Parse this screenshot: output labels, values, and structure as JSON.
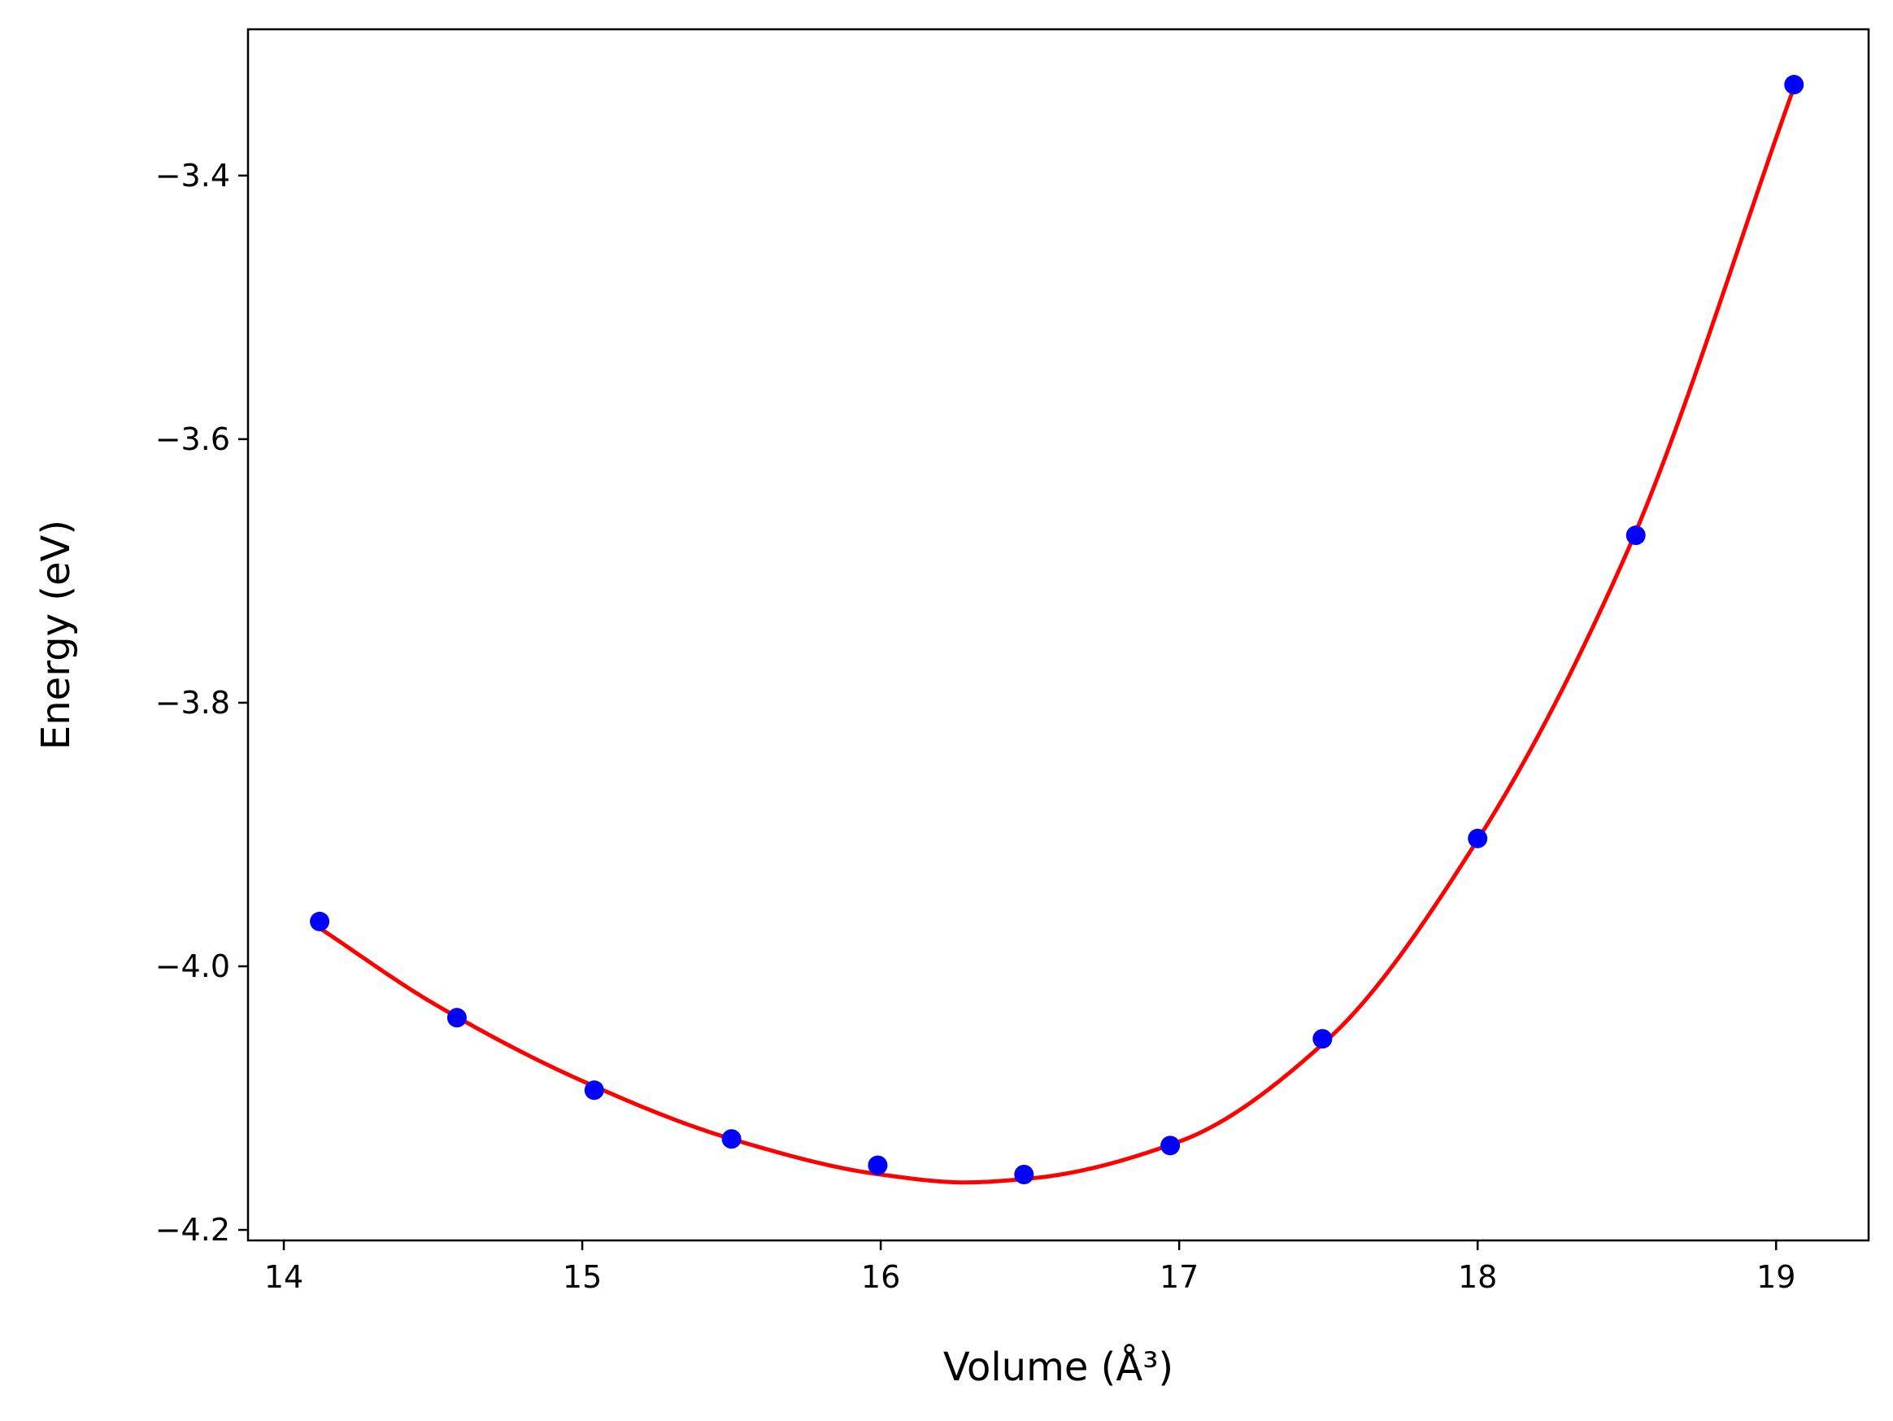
{
  "chart_data": {
    "type": "scatter",
    "xlabel": "Volume (Å³)",
    "ylabel": "Energy (eV)",
    "xlim": [
      13.88,
      19.31
    ],
    "ylim": [
      -4.208,
      -3.289
    ],
    "xticks": [
      14,
      15,
      16,
      17,
      18,
      19
    ],
    "yticks": [
      -4.2,
      -4.0,
      -3.8,
      -3.6,
      -3.4
    ],
    "xtick_labels": [
      "14",
      "15",
      "16",
      "17",
      "18",
      "19"
    ],
    "ytick_labels": [
      "−4.2",
      "−4.0",
      "−3.8",
      "−3.6",
      "−3.4"
    ],
    "grid": false,
    "series": [
      {
        "kind": "points",
        "color": "#0000ff",
        "x": [
          14.12,
          14.58,
          15.04,
          15.5,
          15.99,
          16.48,
          16.97,
          17.48,
          18.0,
          18.53,
          19.06
        ],
        "y": [
          -3.966,
          -4.039,
          -4.094,
          -4.131,
          -4.151,
          -4.158,
          -4.136,
          -4.055,
          -3.903,
          -3.673,
          -3.331
        ]
      },
      {
        "kind": "fit-curve",
        "color": "#ff0000",
        "x": [
          14.12,
          14.5,
          15.0,
          15.5,
          16.0,
          16.28,
          16.5,
          17.0,
          17.5,
          18.0,
          18.5,
          19.06
        ],
        "y": [
          -3.971,
          -4.028,
          -4.087,
          -4.131,
          -4.158,
          -4.164,
          -4.161,
          -4.133,
          -4.055,
          -3.904,
          -3.686,
          -3.333
        ]
      }
    ]
  }
}
